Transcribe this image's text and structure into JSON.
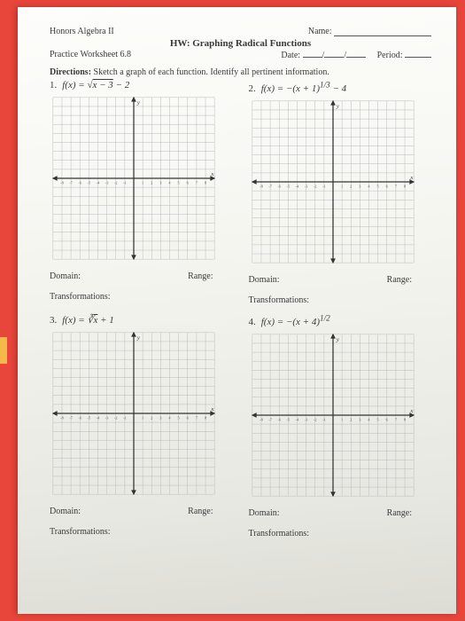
{
  "header": {
    "course": "Honors Algebra II",
    "name_label": "Name:",
    "title": "HW: Graphing Radical Functions",
    "practice": "Practice Worksheet 6.8",
    "date_label": "Date:",
    "slash": "/",
    "period_label": "Period:"
  },
  "directions_label": "Directions:",
  "directions_text": " Sketch a graph of each function. Identify all pertinent information.",
  "labels": {
    "domain": "Domain:",
    "range": "Range:",
    "transformations": "Transformations:"
  },
  "problems": [
    {
      "num": "1.",
      "func_html": "f(x) = √<span class='sqrt'>x − 3</span> − 2"
    },
    {
      "num": "2.",
      "func_html": "f(x) = −(x + 1)<sup>1/3</sup> − 4"
    },
    {
      "num": "3.",
      "func_html": "f(x) = ∛<span class='sqrt'>x</span> + 1"
    },
    {
      "num": "4.",
      "func_html": "f(x) = −(x + 4)<sup>1/2</sup>"
    }
  ],
  "grid": {
    "size": 190,
    "cells": 18,
    "minor_color": "#b8b8b8",
    "axis_color": "#333333",
    "tick_nums": [
      "-8",
      "-7",
      "-6",
      "-5",
      "-4",
      "-3",
      "-2",
      "-1",
      "1",
      "2",
      "3",
      "4",
      "5",
      "6",
      "7",
      "8"
    ],
    "axis_label_x": "x",
    "axis_label_y": "y"
  }
}
